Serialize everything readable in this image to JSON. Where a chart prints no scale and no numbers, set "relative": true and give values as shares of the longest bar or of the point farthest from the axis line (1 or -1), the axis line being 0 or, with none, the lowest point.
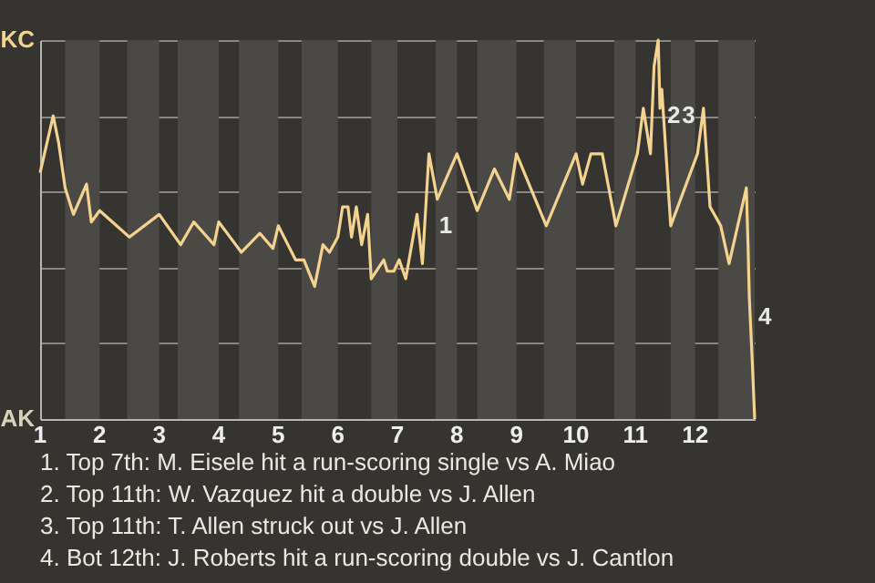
{
  "chart_data": {
    "type": "line",
    "relative": true,
    "x": [
      1,
      1.22,
      1.31,
      1.42,
      1.56,
      1.78,
      1.86,
      2,
      2.5,
      3,
      3.36,
      3.58,
      3.92,
      4,
      4.38,
      4.69,
      4.91,
      5,
      5.29,
      5.43,
      5.61,
      5.75,
      5.86,
      6,
      6.08,
      6.17,
      6.23,
      6.31,
      6.4,
      6.5,
      6.56,
      6.77,
      6.83,
      6.94,
      7.03,
      7.14,
      7.33,
      7.42,
      7.53,
      7.67,
      8,
      8.34,
      8.63,
      8.88,
      9,
      9.5,
      10,
      10.11,
      10.25,
      10.44,
      10.67,
      11.03,
      11.13,
      11.25,
      11.31,
      11.38,
      11.41,
      11.44,
      11.59,
      12.04,
      12.14,
      12.25,
      12.43,
      12.57,
      12.86,
      12.89,
      12.91,
      12.96,
      13
    ],
    "series": [
      {
        "color": "#f3d38f",
        "values": [
          0.65,
          0.8,
          0.73,
          0.61,
          0.54,
          0.62,
          0.52,
          0.55,
          0.48,
          0.54,
          0.46,
          0.52,
          0.46,
          0.52,
          0.44,
          0.49,
          0.45,
          0.51,
          0.42,
          0.42,
          0.35,
          0.46,
          0.44,
          0.48,
          0.56,
          0.56,
          0.48,
          0.56,
          0.46,
          0.54,
          0.37,
          0.42,
          0.39,
          0.39,
          0.42,
          0.37,
          0.54,
          0.41,
          0.7,
          0.58,
          0.7,
          0.55,
          0.66,
          0.58,
          0.7,
          0.51,
          0.7,
          0.62,
          0.7,
          0.7,
          0.51,
          0.7,
          0.82,
          0.7,
          0.93,
          1,
          0.82,
          0.87,
          0.51,
          0.7,
          0.82,
          0.56,
          0.51,
          0.41,
          0.61,
          0.45,
          0.32,
          0.15,
          0
        ]
      }
    ],
    "xlim": [
      1,
      13
    ],
    "xticks": [
      1,
      2,
      3,
      4,
      5,
      6,
      7,
      8,
      9,
      10,
      11,
      12
    ],
    "grid": "y",
    "bands": [
      {
        "axis": "x",
        "from": 1.42,
        "to": 2,
        "color": "#4b4946"
      },
      {
        "axis": "x",
        "from": 2.46,
        "to": 3,
        "color": "#4b4946"
      },
      {
        "axis": "x",
        "from": 3.31,
        "to": 4,
        "color": "#4b4946"
      },
      {
        "axis": "x",
        "from": 4.34,
        "to": 5,
        "color": "#4b4946"
      },
      {
        "axis": "x",
        "from": 5.39,
        "to": 6,
        "color": "#4b4946"
      },
      {
        "axis": "x",
        "from": 6.56,
        "to": 7,
        "color": "#4b4946"
      },
      {
        "axis": "x",
        "from": 7.64,
        "to": 8,
        "color": "#4b4946"
      },
      {
        "axis": "x",
        "from": 8.34,
        "to": 9,
        "color": "#4b4946"
      },
      {
        "axis": "x",
        "from": 9.46,
        "to": 10,
        "color": "#4b4946"
      },
      {
        "axis": "x",
        "from": 10.64,
        "to": 11,
        "color": "#4b4946"
      },
      {
        "axis": "x",
        "from": 11.59,
        "to": 12,
        "color": "#4b4946"
      },
      {
        "axis": "x",
        "from": 12.39,
        "to": 13,
        "color": "#4b4946"
      }
    ],
    "annotations": [
      "KC",
      "AK",
      {
        "text": "1",
        "x": 7.64,
        "y": 0.51
      },
      {
        "text": "2",
        "x": 11.47,
        "y": 0.8
      },
      {
        "text": "3",
        "x": 11.72,
        "y": 0.8
      },
      {
        "text": "4",
        "x": 13,
        "y": 0.27
      },
      "1. Top 7th: M. Eisele hit a run-scoring single vs A. Miao",
      "2. Top 11th: W. Vazquez hit a double vs J. Allen",
      "3. Top 11th: T. Allen struck out vs J. Allen",
      "4. Bot 12th: J. Roberts hit a run-scoring double vs J. Cantlon"
    ]
  }
}
